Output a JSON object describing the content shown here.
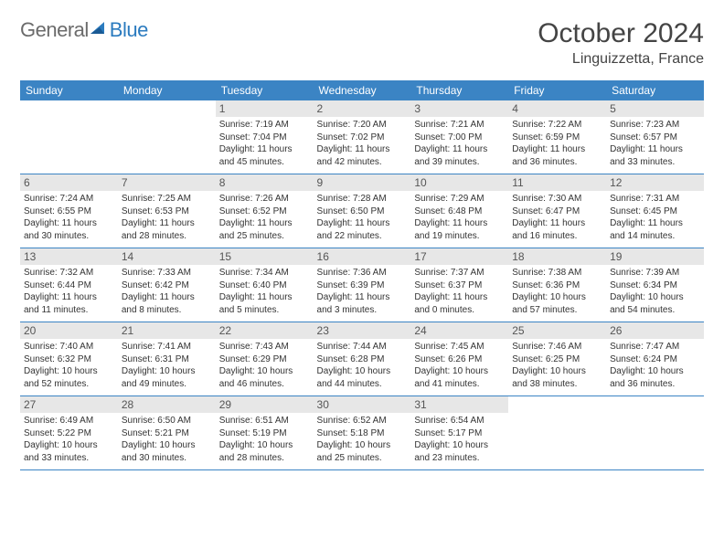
{
  "logo": {
    "part1": "General",
    "part2": "Blue"
  },
  "title": "October 2024",
  "location": "Linguizzetta, France",
  "accent_color": "#3b84c4",
  "header_bg": "#e7e7e7",
  "text_color": "#333333",
  "day_headers": [
    "Sunday",
    "Monday",
    "Tuesday",
    "Wednesday",
    "Thursday",
    "Friday",
    "Saturday"
  ],
  "weeks": [
    [
      {
        "empty": true
      },
      {
        "empty": true
      },
      {
        "num": "1",
        "sunrise": "Sunrise: 7:19 AM",
        "sunset": "Sunset: 7:04 PM",
        "daylight": "Daylight: 11 hours and 45 minutes."
      },
      {
        "num": "2",
        "sunrise": "Sunrise: 7:20 AM",
        "sunset": "Sunset: 7:02 PM",
        "daylight": "Daylight: 11 hours and 42 minutes."
      },
      {
        "num": "3",
        "sunrise": "Sunrise: 7:21 AM",
        "sunset": "Sunset: 7:00 PM",
        "daylight": "Daylight: 11 hours and 39 minutes."
      },
      {
        "num": "4",
        "sunrise": "Sunrise: 7:22 AM",
        "sunset": "Sunset: 6:59 PM",
        "daylight": "Daylight: 11 hours and 36 minutes."
      },
      {
        "num": "5",
        "sunrise": "Sunrise: 7:23 AM",
        "sunset": "Sunset: 6:57 PM",
        "daylight": "Daylight: 11 hours and 33 minutes."
      }
    ],
    [
      {
        "num": "6",
        "sunrise": "Sunrise: 7:24 AM",
        "sunset": "Sunset: 6:55 PM",
        "daylight": "Daylight: 11 hours and 30 minutes."
      },
      {
        "num": "7",
        "sunrise": "Sunrise: 7:25 AM",
        "sunset": "Sunset: 6:53 PM",
        "daylight": "Daylight: 11 hours and 28 minutes."
      },
      {
        "num": "8",
        "sunrise": "Sunrise: 7:26 AM",
        "sunset": "Sunset: 6:52 PM",
        "daylight": "Daylight: 11 hours and 25 minutes."
      },
      {
        "num": "9",
        "sunrise": "Sunrise: 7:28 AM",
        "sunset": "Sunset: 6:50 PM",
        "daylight": "Daylight: 11 hours and 22 minutes."
      },
      {
        "num": "10",
        "sunrise": "Sunrise: 7:29 AM",
        "sunset": "Sunset: 6:48 PM",
        "daylight": "Daylight: 11 hours and 19 minutes."
      },
      {
        "num": "11",
        "sunrise": "Sunrise: 7:30 AM",
        "sunset": "Sunset: 6:47 PM",
        "daylight": "Daylight: 11 hours and 16 minutes."
      },
      {
        "num": "12",
        "sunrise": "Sunrise: 7:31 AM",
        "sunset": "Sunset: 6:45 PM",
        "daylight": "Daylight: 11 hours and 14 minutes."
      }
    ],
    [
      {
        "num": "13",
        "sunrise": "Sunrise: 7:32 AM",
        "sunset": "Sunset: 6:44 PM",
        "daylight": "Daylight: 11 hours and 11 minutes."
      },
      {
        "num": "14",
        "sunrise": "Sunrise: 7:33 AM",
        "sunset": "Sunset: 6:42 PM",
        "daylight": "Daylight: 11 hours and 8 minutes."
      },
      {
        "num": "15",
        "sunrise": "Sunrise: 7:34 AM",
        "sunset": "Sunset: 6:40 PM",
        "daylight": "Daylight: 11 hours and 5 minutes."
      },
      {
        "num": "16",
        "sunrise": "Sunrise: 7:36 AM",
        "sunset": "Sunset: 6:39 PM",
        "daylight": "Daylight: 11 hours and 3 minutes."
      },
      {
        "num": "17",
        "sunrise": "Sunrise: 7:37 AM",
        "sunset": "Sunset: 6:37 PM",
        "daylight": "Daylight: 11 hours and 0 minutes."
      },
      {
        "num": "18",
        "sunrise": "Sunrise: 7:38 AM",
        "sunset": "Sunset: 6:36 PM",
        "daylight": "Daylight: 10 hours and 57 minutes."
      },
      {
        "num": "19",
        "sunrise": "Sunrise: 7:39 AM",
        "sunset": "Sunset: 6:34 PM",
        "daylight": "Daylight: 10 hours and 54 minutes."
      }
    ],
    [
      {
        "num": "20",
        "sunrise": "Sunrise: 7:40 AM",
        "sunset": "Sunset: 6:32 PM",
        "daylight": "Daylight: 10 hours and 52 minutes."
      },
      {
        "num": "21",
        "sunrise": "Sunrise: 7:41 AM",
        "sunset": "Sunset: 6:31 PM",
        "daylight": "Daylight: 10 hours and 49 minutes."
      },
      {
        "num": "22",
        "sunrise": "Sunrise: 7:43 AM",
        "sunset": "Sunset: 6:29 PM",
        "daylight": "Daylight: 10 hours and 46 minutes."
      },
      {
        "num": "23",
        "sunrise": "Sunrise: 7:44 AM",
        "sunset": "Sunset: 6:28 PM",
        "daylight": "Daylight: 10 hours and 44 minutes."
      },
      {
        "num": "24",
        "sunrise": "Sunrise: 7:45 AM",
        "sunset": "Sunset: 6:26 PM",
        "daylight": "Daylight: 10 hours and 41 minutes."
      },
      {
        "num": "25",
        "sunrise": "Sunrise: 7:46 AM",
        "sunset": "Sunset: 6:25 PM",
        "daylight": "Daylight: 10 hours and 38 minutes."
      },
      {
        "num": "26",
        "sunrise": "Sunrise: 7:47 AM",
        "sunset": "Sunset: 6:24 PM",
        "daylight": "Daylight: 10 hours and 36 minutes."
      }
    ],
    [
      {
        "num": "27",
        "sunrise": "Sunrise: 6:49 AM",
        "sunset": "Sunset: 5:22 PM",
        "daylight": "Daylight: 10 hours and 33 minutes."
      },
      {
        "num": "28",
        "sunrise": "Sunrise: 6:50 AM",
        "sunset": "Sunset: 5:21 PM",
        "daylight": "Daylight: 10 hours and 30 minutes."
      },
      {
        "num": "29",
        "sunrise": "Sunrise: 6:51 AM",
        "sunset": "Sunset: 5:19 PM",
        "daylight": "Daylight: 10 hours and 28 minutes."
      },
      {
        "num": "30",
        "sunrise": "Sunrise: 6:52 AM",
        "sunset": "Sunset: 5:18 PM",
        "daylight": "Daylight: 10 hours and 25 minutes."
      },
      {
        "num": "31",
        "sunrise": "Sunrise: 6:54 AM",
        "sunset": "Sunset: 5:17 PM",
        "daylight": "Daylight: 10 hours and 23 minutes."
      },
      {
        "empty": true
      },
      {
        "empty": true
      }
    ]
  ]
}
